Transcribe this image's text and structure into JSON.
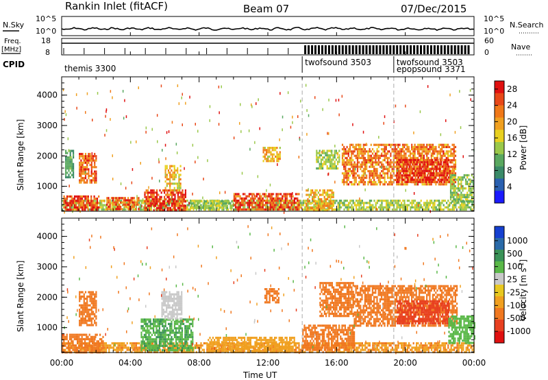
{
  "header": {
    "title": "Rankin Inlet (fitACF)",
    "beam": "Beam 07",
    "date": "07/Dec/2015"
  },
  "strip_noise": {
    "left_label": "N.Sky",
    "right_label": "N.Search",
    "left_ticks": [
      "10^5",
      "10^0"
    ],
    "right_ticks": [
      "10^5",
      "10^0"
    ]
  },
  "strip_freq": {
    "left_label_top": "Freq.",
    "left_label_bottom": "[MHz]",
    "right_label": "Nave",
    "left_ticks": [
      "18",
      "8"
    ],
    "right_ticks": [
      "60",
      "0"
    ]
  },
  "cpid": {
    "label": "CPID",
    "entries": [
      {
        "name": "themis 3300",
        "start_hour": 0.0
      },
      {
        "name": "twofsound 3503",
        "start_hour": 14.0
      },
      {
        "name": "twofsound 3503",
        "start_hour": 19.33
      },
      {
        "name": "epopsound 3371",
        "start_hour": 19.33
      }
    ],
    "markers_hours": [
      14.0,
      19.33
    ]
  },
  "colors": {
    "power_scale": [
      "#1a1aff",
      "#2a60b0",
      "#3a8a68",
      "#5aa860",
      "#9ac84a",
      "#e8d020",
      "#f0a020",
      "#f07818",
      "#e84818",
      "#e01010"
    ],
    "velocity_scale": [
      "#1540d0",
      "#2a6aa8",
      "#3a9258",
      "#5ab848",
      "#c8c8c8",
      "#e8c820",
      "#f0a020",
      "#f07820",
      "#e84020",
      "#e01010"
    ]
  },
  "chart_data": [
    {
      "type": "heatmap",
      "panel": "power",
      "ylabel": "Slant Range [km]",
      "ylim": [
        180,
        4600
      ],
      "yticks": [
        "1000",
        "2000",
        "3000",
        "4000"
      ],
      "xlim_hours": [
        0,
        24
      ],
      "colorbar": {
        "label": "Power [dB]",
        "ticks": [
          "4",
          "8",
          "12",
          "16",
          "20",
          "24",
          "28"
        ],
        "range": [
          0,
          30
        ]
      },
      "regions": [
        {
          "t0": 0.0,
          "t1": 24.0,
          "r0": 200,
          "r1": 560,
          "value": 14
        },
        {
          "t0": 0.1,
          "t1": 2.2,
          "r0": 200,
          "r1": 700,
          "value": 26
        },
        {
          "t0": 2.6,
          "t1": 4.5,
          "r0": 250,
          "r1": 650,
          "value": 24
        },
        {
          "t0": 4.8,
          "t1": 7.2,
          "r0": 200,
          "r1": 900,
          "value": 27
        },
        {
          "t0": 6.0,
          "t1": 6.9,
          "r0": 900,
          "r1": 1700,
          "value": 18
        },
        {
          "t0": 7.5,
          "t1": 10.0,
          "r0": 260,
          "r1": 540,
          "value": 13
        },
        {
          "t0": 10.0,
          "t1": 13.8,
          "r0": 220,
          "r1": 780,
          "value": 26
        },
        {
          "t0": 11.7,
          "t1": 12.7,
          "r0": 1800,
          "r1": 2300,
          "value": 19
        },
        {
          "t0": 14.2,
          "t1": 15.8,
          "r0": 200,
          "r1": 900,
          "value": 19
        },
        {
          "t0": 14.8,
          "t1": 16.2,
          "r0": 1600,
          "r1": 2200,
          "value": 14
        },
        {
          "t0": 16.3,
          "t1": 22.9,
          "r0": 1100,
          "r1": 2400,
          "value": 22
        },
        {
          "t0": 19.5,
          "t1": 22.6,
          "r0": 1150,
          "r1": 1900,
          "value": 27
        },
        {
          "t0": 22.6,
          "t1": 24.0,
          "r0": 500,
          "r1": 1400,
          "value": 13
        },
        {
          "t0": 1.0,
          "t1": 2.0,
          "r0": 1100,
          "r1": 2100,
          "value": 24
        },
        {
          "t0": 0.2,
          "t1": 0.7,
          "r0": 1300,
          "r1": 2200,
          "value": 10
        }
      ]
    },
    {
      "type": "heatmap",
      "panel": "velocity",
      "ylabel": "Slant Range [km]",
      "ylim": [
        180,
        4600
      ],
      "yticks": [
        "1000",
        "2000",
        "3000",
        "4000"
      ],
      "xlim_hours": [
        0,
        24
      ],
      "xticks": [
        "00:00",
        "04:00",
        "08:00",
        "12:00",
        "16:00",
        "20:00",
        "00:00"
      ],
      "xlabel": "Time UT",
      "colorbar": {
        "label": "Velocity [m s^-1]",
        "ticks": [
          "1000",
          "500",
          "100",
          "25",
          "-25",
          "-100",
          "-500",
          "-1000"
        ]
      },
      "regions": [
        {
          "t0": 0.0,
          "t1": 24.0,
          "r0": 200,
          "r1": 520,
          "value": -90
        },
        {
          "t0": 0.0,
          "t1": 2.4,
          "r0": 200,
          "r1": 800,
          "value": -200
        },
        {
          "t0": 4.6,
          "t1": 7.6,
          "r0": 250,
          "r1": 1300,
          "value": 90
        },
        {
          "t0": 5.8,
          "t1": 7.0,
          "r0": 1300,
          "r1": 2200,
          "value": 10
        },
        {
          "t0": 8.5,
          "t1": 13.5,
          "r0": 250,
          "r1": 700,
          "value": -60
        },
        {
          "t0": 11.8,
          "t1": 12.6,
          "r0": 1800,
          "r1": 2300,
          "value": -300
        },
        {
          "t0": 14.0,
          "t1": 17.0,
          "r0": 250,
          "r1": 1100,
          "value": -200
        },
        {
          "t0": 15.0,
          "t1": 17.0,
          "r0": 1400,
          "r1": 2500,
          "value": -400
        },
        {
          "t0": 17.0,
          "t1": 23.0,
          "r0": 1100,
          "r1": 2400,
          "value": -350
        },
        {
          "t0": 19.5,
          "t1": 22.5,
          "r0": 1150,
          "r1": 1900,
          "value": -700
        },
        {
          "t0": 22.5,
          "t1": 24.0,
          "r0": 500,
          "r1": 1400,
          "value": 80
        },
        {
          "t0": 1.0,
          "t1": 2.0,
          "r0": 1100,
          "r1": 2200,
          "value": -300
        }
      ]
    }
  ]
}
